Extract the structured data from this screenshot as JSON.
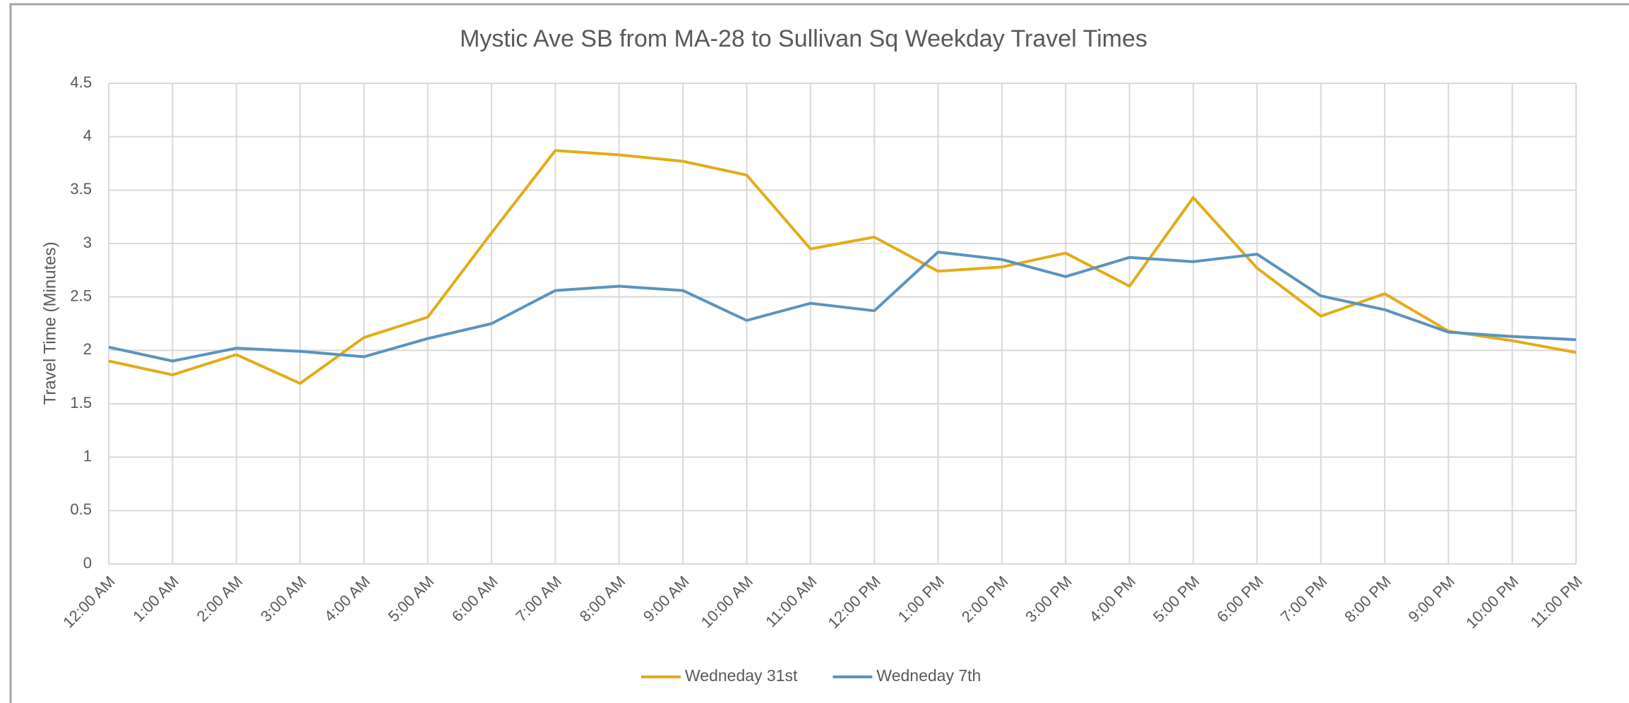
{
  "chart_data": {
    "type": "line",
    "title": "Mystic Ave SB from MA-28 to Sullivan Sq Weekday Travel Times",
    "y_label": "Travel Time (Minutes)",
    "categories": [
      "12:00 AM",
      "1:00 AM",
      "2:00 AM",
      "3:00 AM",
      "4:00 AM",
      "5:00 AM",
      "6:00 AM",
      "7:00 AM",
      "8:00 AM",
      "9:00 AM",
      "10:00 AM",
      "11:00 AM",
      "12:00 PM",
      "1:00 PM",
      "2:00 PM",
      "3:00 PM",
      "4:00 PM",
      "5:00 PM",
      "6:00 PM",
      "7:00 PM",
      "8:00 PM",
      "9:00 PM",
      "10:00 PM",
      "11:00 PM"
    ],
    "series": [
      {
        "name": "Wedneday 31st",
        "color": "#e3ac16",
        "values": [
          1.9,
          1.77,
          1.96,
          1.69,
          2.12,
          2.31,
          3.1,
          3.87,
          3.83,
          3.77,
          3.64,
          2.95,
          3.06,
          2.74,
          2.78,
          2.91,
          2.6,
          3.43,
          2.77,
          2.32,
          2.53,
          2.18,
          2.09,
          1.98
        ]
      },
      {
        "name": "Wedneday 7th",
        "color": "#5b93bf",
        "values": [
          2.03,
          1.9,
          2.02,
          1.99,
          1.94,
          2.11,
          2.25,
          2.56,
          2.6,
          2.56,
          2.28,
          2.44,
          2.37,
          2.92,
          2.85,
          2.69,
          2.87,
          2.83,
          2.9,
          2.51,
          2.38,
          2.17,
          2.13,
          2.1
        ]
      }
    ],
    "ylim": [
      0,
      4.5
    ],
    "yticks": [
      0,
      0.5,
      1,
      1.5,
      2,
      2.5,
      3,
      3.5,
      4,
      4.5
    ],
    "grid": true,
    "legend": "bottom"
  }
}
